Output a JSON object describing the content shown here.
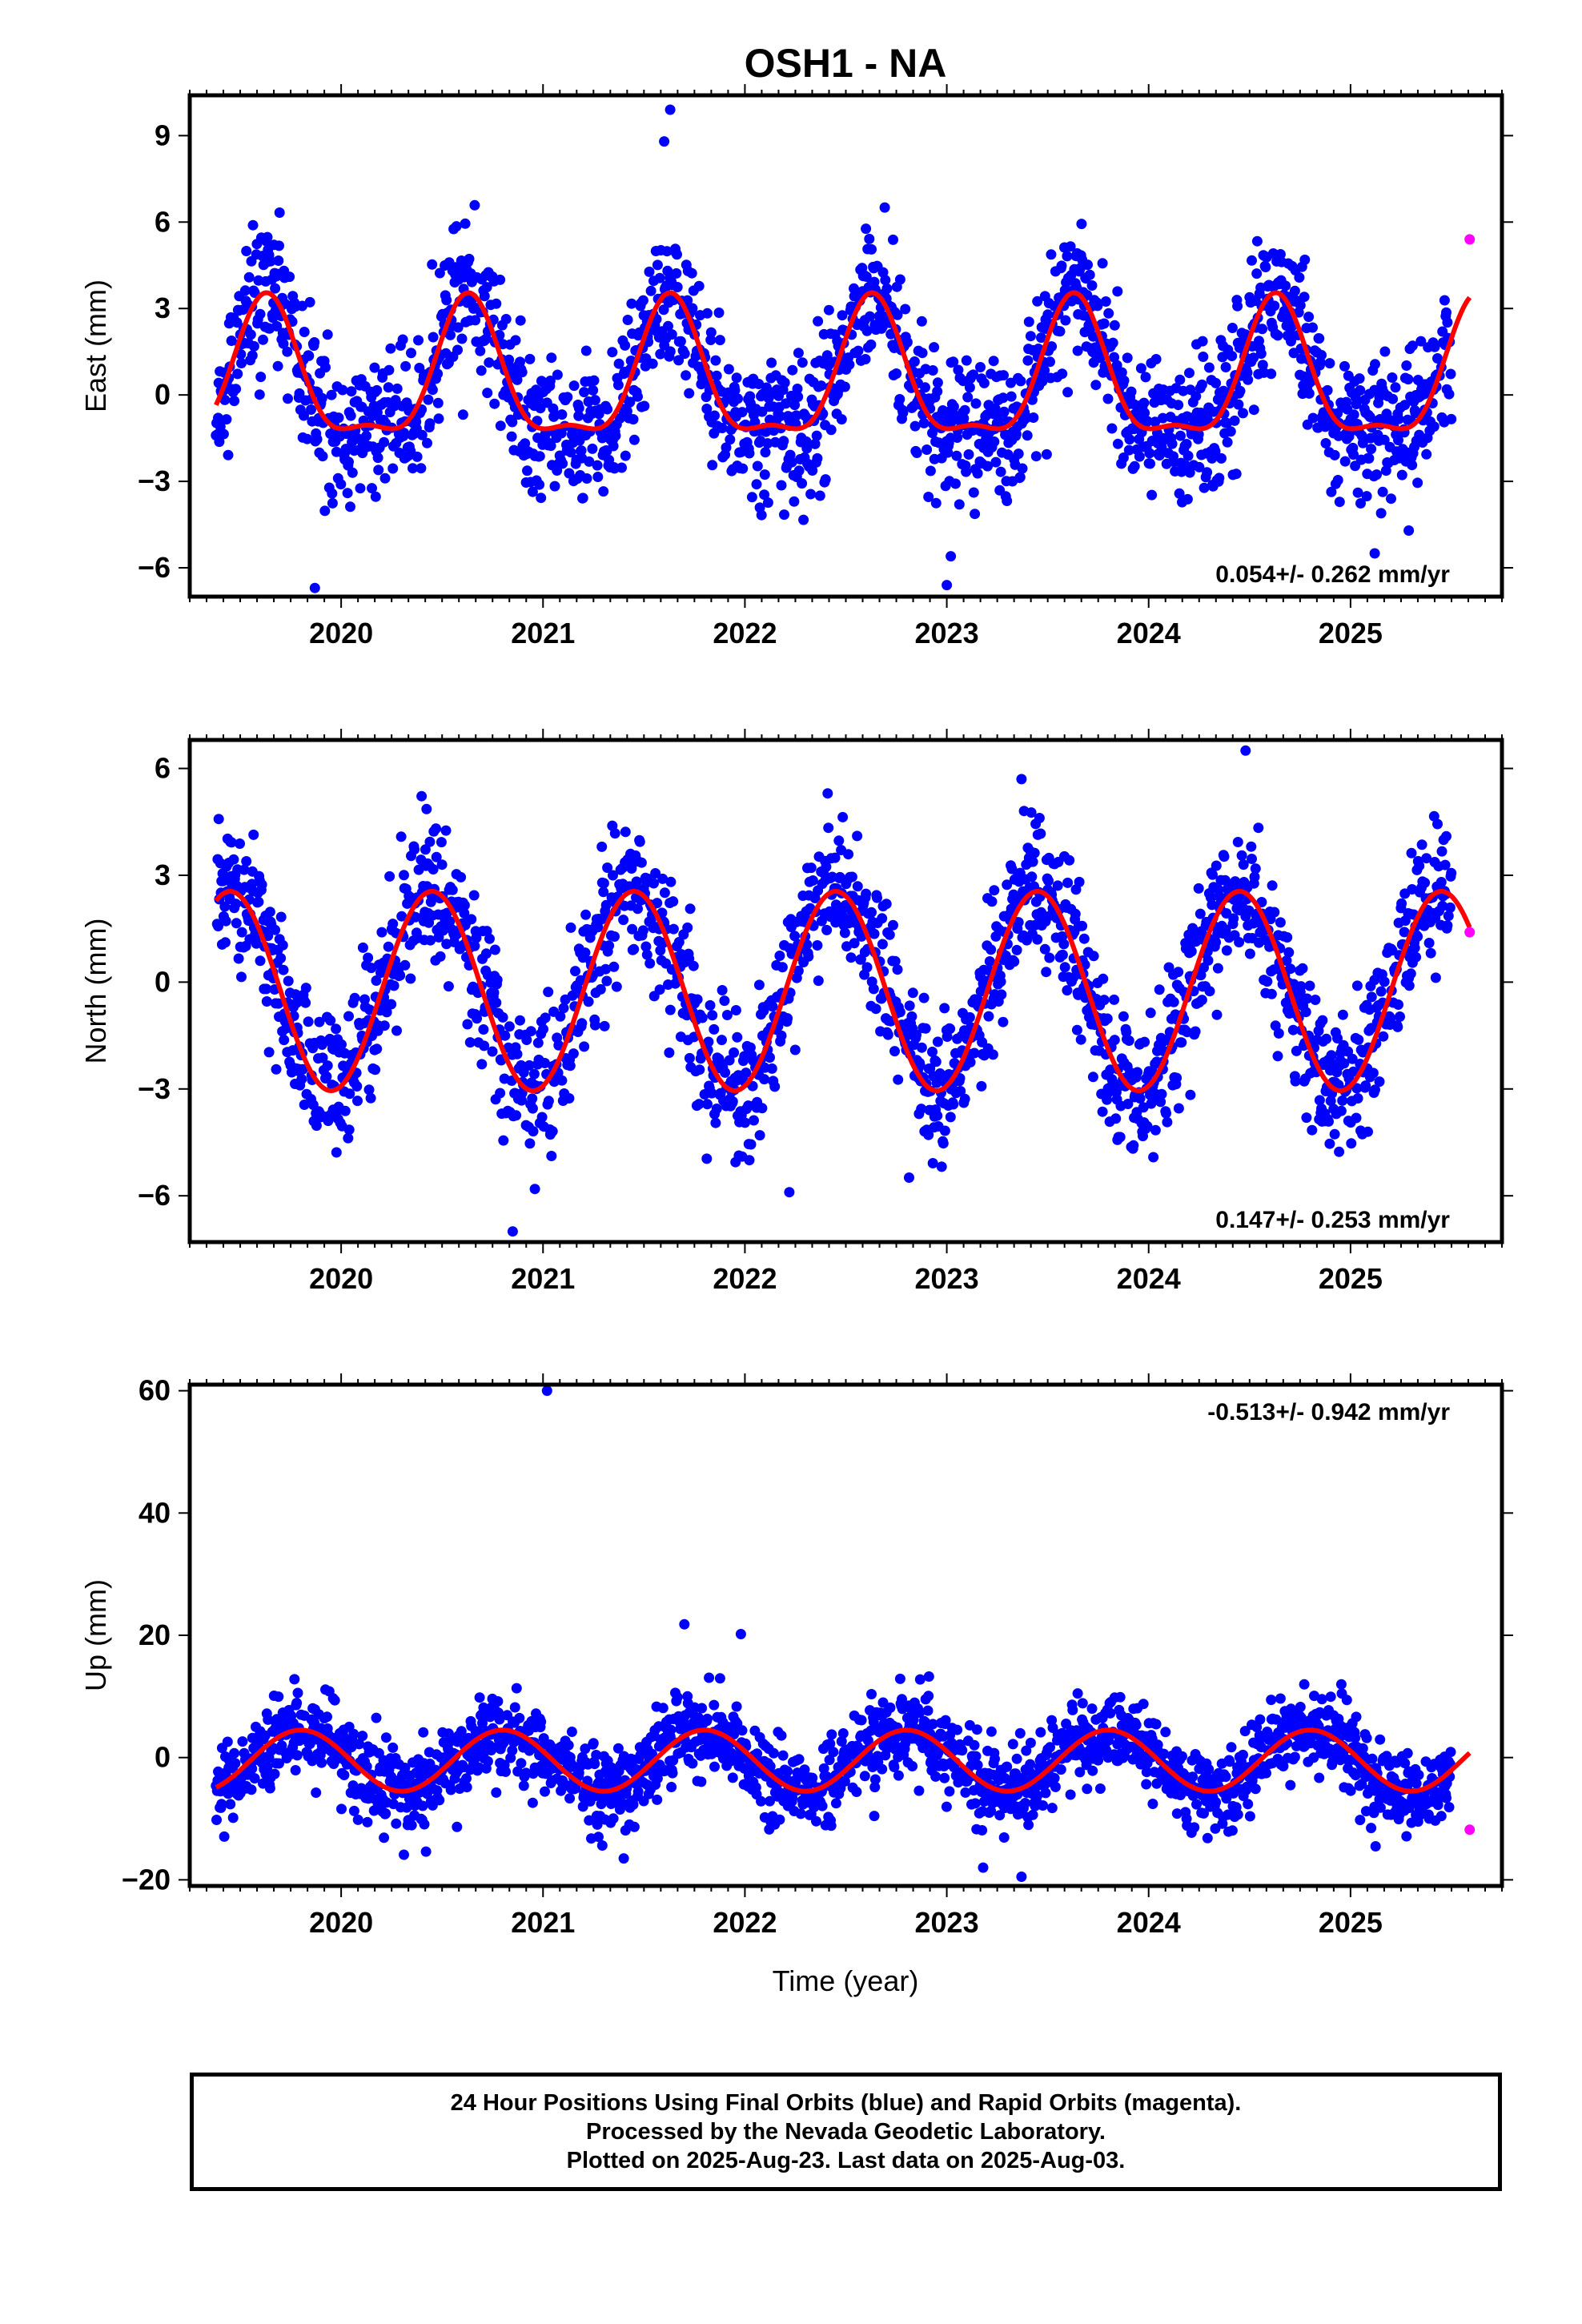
{
  "figure_title": "OSH1 - NA",
  "colors": {
    "final_orbits": "#0000ff",
    "rapid_orbits": "#ff00ff",
    "model_fit": "#ff0000",
    "axes": "#000000",
    "background": "#ffffff"
  },
  "x_axis_title": "Time (year)",
  "caption": {
    "line1": "24 Hour Positions Using Final Orbits (blue) and Rapid Orbits (magenta).",
    "line2": "Processed by the Nevada Geodetic Laboratory.",
    "line3": "Plotted on 2025-Aug-23. Last data on 2025-Aug-03."
  },
  "chart_data": [
    {
      "type": "scatter",
      "panel": "east",
      "title": "OSH1 - NA",
      "ylabel": "East (mm)",
      "xlabel": "",
      "xlim": [
        2019.25,
        2025.75
      ],
      "ylim": [
        -7,
        10.4
      ],
      "xticks": [
        "2020",
        "2021",
        "2022",
        "2023",
        "2024",
        "2025"
      ],
      "yticks": [
        "-6",
        "-3",
        "0",
        "3",
        "6",
        "9"
      ],
      "rate_label": "0.054+/- 0.262 mm/yr",
      "rate_position": "bottom-right",
      "series": [
        {
          "name": "Final Orbits",
          "marker": "dot",
          "data_range": [
            2019.38,
            2025.5
          ],
          "annual_amplitude": 2.3,
          "annual_peak": 0.63,
          "semiannual_amplitude": 0.8,
          "semiannual_peak": 0.63,
          "noise_sd": 1.2,
          "outliers": [
            [
              2021.63,
              9.9
            ],
            [
              2021.6,
              8.8
            ],
            [
              2023.0,
              -6.6
            ],
            [
              2019.87,
              -6.7
            ],
            [
              2023.02,
              -5.6
            ],
            [
              2025.12,
              -5.5
            ]
          ]
        },
        {
          "name": "Rapid Orbits",
          "marker": "dot",
          "points": [
            [
              2025.59,
              5.4
            ]
          ]
        },
        {
          "name": "Model",
          "type": "line",
          "x_range": [
            2019.38,
            2025.59
          ],
          "offset": 0.45,
          "annual_amplitude": 2.3,
          "annual_peak": 0.63,
          "semiannual_amplitude": 0.8,
          "semiannual_peak": 0.63
        }
      ]
    },
    {
      "type": "scatter",
      "panel": "north",
      "ylabel": "North (mm)",
      "xlabel": "",
      "xlim": [
        2019.25,
        2025.75
      ],
      "ylim": [
        -7.3,
        6.8
      ],
      "xticks": [
        "2020",
        "2021",
        "2022",
        "2023",
        "2024",
        "2025"
      ],
      "yticks": [
        "-6",
        "-3",
        "0",
        "3",
        "6"
      ],
      "rate_label": "0.147+/- 0.253 mm/yr",
      "rate_position": "bottom-right",
      "series": [
        {
          "name": "Final Orbits",
          "marker": "dot",
          "data_range": [
            2019.38,
            2025.5
          ],
          "annual_amplitude": 2.8,
          "annual_peak": 0.45,
          "noise_sd": 1.0,
          "outliers": [
            [
              2020.85,
              -7.0
            ],
            [
              2022.22,
              -5.9
            ],
            [
              2024.48,
              6.5
            ],
            [
              2023.37,
              5.7
            ],
            [
              2022.41,
              5.3
            ]
          ]
        },
        {
          "name": "Rapid Orbits",
          "marker": "dot",
          "points": [
            [
              2025.59,
              1.4
            ]
          ]
        },
        {
          "name": "Model",
          "type": "line",
          "x_range": [
            2019.38,
            2025.59
          ],
          "offset": -0.25,
          "annual_amplitude": 2.8,
          "annual_peak": 0.45
        }
      ]
    },
    {
      "type": "scatter",
      "panel": "up",
      "ylabel": "Up (mm)",
      "xlabel": "Time (year)",
      "xlim": [
        2019.25,
        2025.75
      ],
      "ylim": [
        -21,
        61
      ],
      "xticks": [
        "2020",
        "2021",
        "2022",
        "2023",
        "2024",
        "2025"
      ],
      "yticks": [
        "-20",
        "0",
        "20",
        "40",
        "60"
      ],
      "rate_label": "-0.513+/- 0.942 mm/yr",
      "rate_position": "top-right",
      "series": [
        {
          "name": "Final Orbits",
          "marker": "dot",
          "data_range": [
            2019.38,
            2025.5
          ],
          "annual_amplitude": 5.0,
          "annual_peak": 0.8,
          "noise_sd": 3.5,
          "outliers": [
            [
              2021.02,
              60
            ],
            [
              2021.7,
              21.8
            ],
            [
              2021.98,
              20.2
            ],
            [
              2023.37,
              -19.5
            ],
            [
              2023.18,
              -18.0
            ],
            [
              2021.4,
              -16.5
            ]
          ]
        },
        {
          "name": "Rapid Orbits",
          "marker": "dot",
          "points": [
            [
              2025.59,
              -11.8
            ]
          ]
        },
        {
          "name": "Model",
          "type": "line",
          "x_range": [
            2019.38,
            2025.59
          ],
          "offset": -0.5,
          "annual_amplitude": 5.0,
          "annual_peak": 0.8
        }
      ]
    }
  ]
}
